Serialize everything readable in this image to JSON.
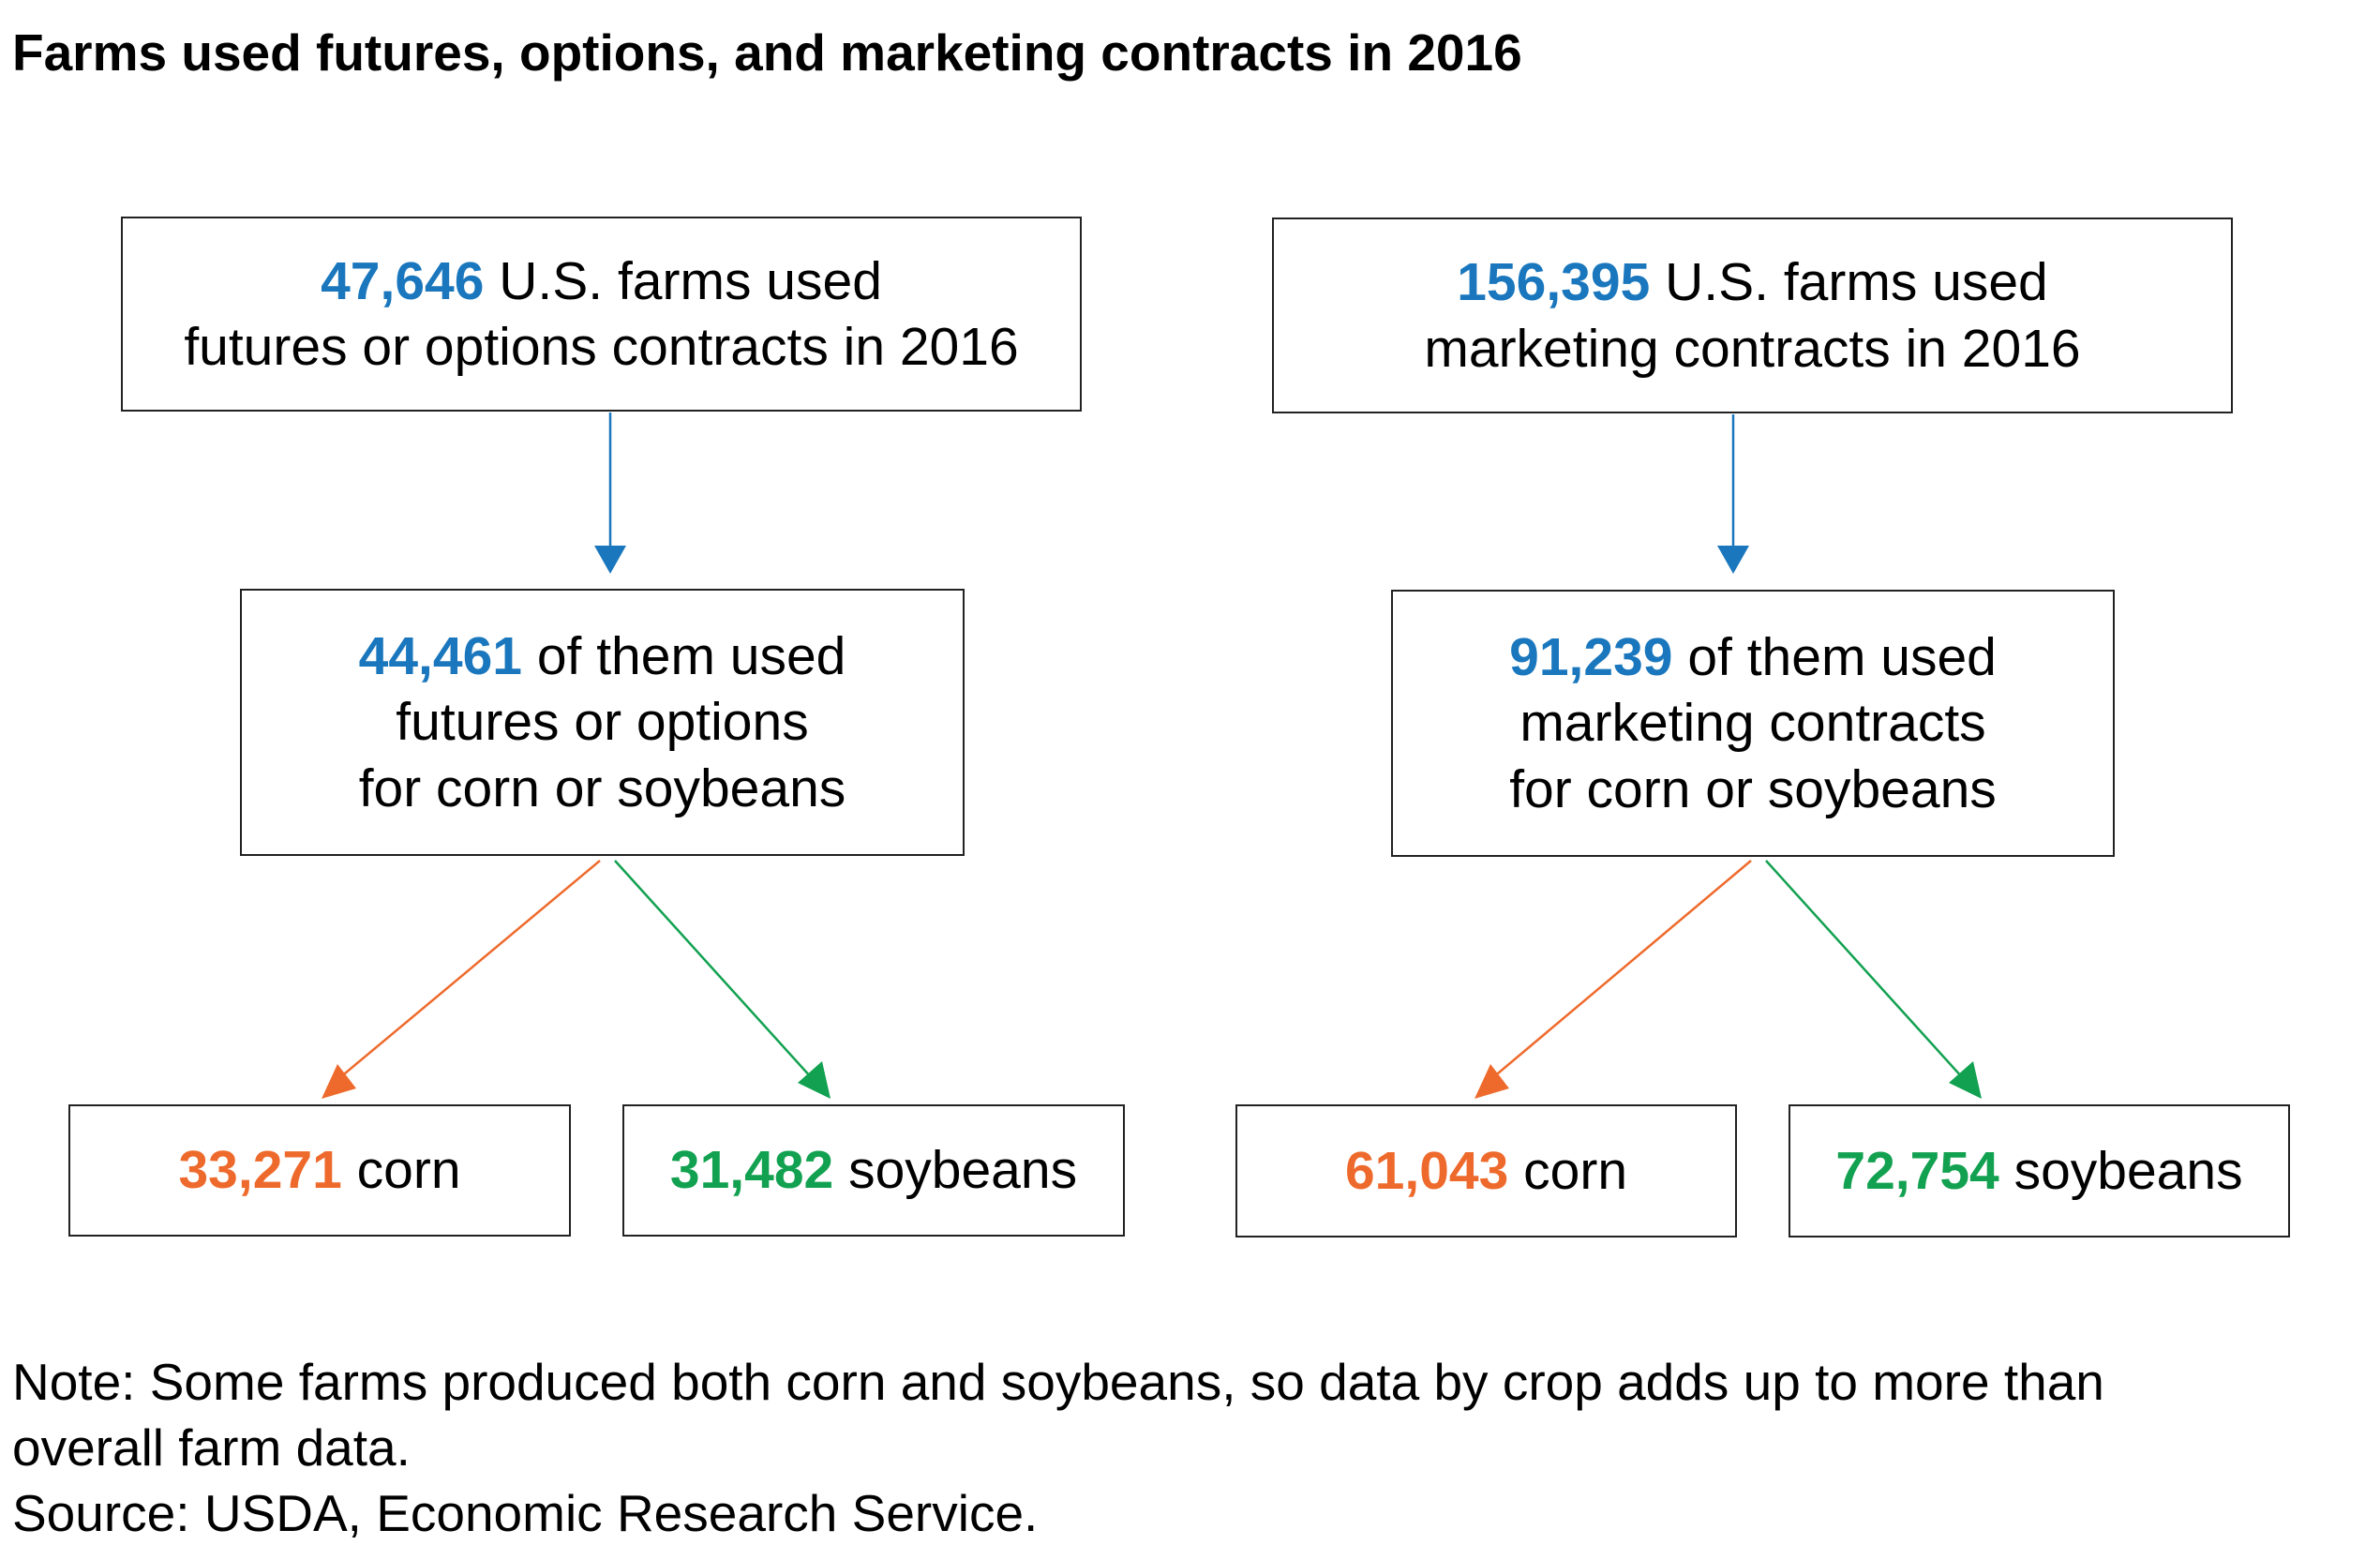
{
  "title": "Farms used futures, options, and marketing contracts in 2016",
  "colors": {
    "blue": "#1a77bd",
    "orange": "#ee6a2c",
    "green": "#12a150"
  },
  "left": {
    "top": {
      "number": "47,646",
      "text1": "U.S. farms used",
      "text2": "futures or options contracts in 2016"
    },
    "middle": {
      "number": "44,461",
      "text1": "of them used",
      "text2": "futures or options",
      "text3": "for corn or soybeans"
    },
    "corn": {
      "number": "33,271",
      "label": "corn"
    },
    "soybeans": {
      "number": "31,482",
      "label": "soybeans"
    }
  },
  "right": {
    "top": {
      "number": "156,395",
      "text1": "U.S. farms used",
      "text2": "marketing contracts in 2016"
    },
    "middle": {
      "number": "91,239",
      "text1": "of them used",
      "text2": "marketing contracts",
      "text3": "for corn or soybeans"
    },
    "corn": {
      "number": "61,043",
      "label": "corn"
    },
    "soybeans": {
      "number": "72,754",
      "label": "soybeans"
    }
  },
  "note_line1": "Note: Some farms produced both corn and soybeans, so data by crop adds up to more than",
  "note_line2": "overall farm data.",
  "source": "Source: USDA, Economic Research Service."
}
